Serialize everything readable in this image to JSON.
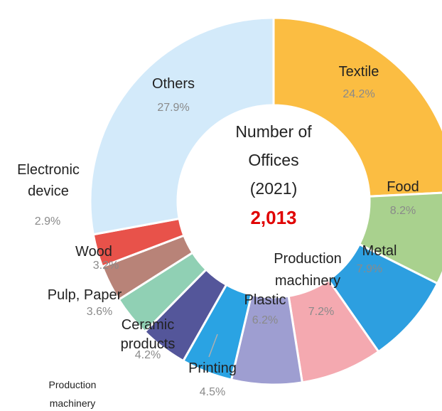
{
  "chart_data": {
    "type": "pie",
    "style": "donut",
    "center": {
      "lines": [
        "Number of",
        "Offices",
        "(2021)"
      ],
      "value": "2,013",
      "value_color": "#e00000"
    },
    "slices": [
      {
        "label": "Textile",
        "label_lines": [
          "Textile"
        ],
        "percent_text": "24.2%",
        "value": 24.2,
        "color": "#fbbd42"
      },
      {
        "label": "Food",
        "label_lines": [
          "Food"
        ],
        "percent_text": "8.2%",
        "value": 8.2,
        "color": "#a9d18e"
      },
      {
        "label": "Metal",
        "label_lines": [
          "Metal"
        ],
        "percent_text": "7.9%",
        "value": 7.9,
        "color": "#2d9fe0"
      },
      {
        "label": "Production machinery",
        "label_lines": [
          "Production",
          "machinery"
        ],
        "percent_text": "7.2%",
        "value": 7.2,
        "color": "#f4a9b0"
      },
      {
        "label": "Plastic",
        "label_lines": [
          "Plastic"
        ],
        "percent_text": "6.2%",
        "value": 6.2,
        "color": "#9e9ed1"
      },
      {
        "label": "Printing",
        "label_lines": [
          "Printing"
        ],
        "percent_text": "4.5%",
        "value": 4.5,
        "color": "#2aa3e3"
      },
      {
        "label": "Ceramic products",
        "label_lines": [
          "Ceramic",
          "products"
        ],
        "percent_text": "4.2%",
        "value": 4.2,
        "color": "#54569a"
      },
      {
        "label": "Pulp, Paper",
        "label_lines": [
          "Pulp, Paper"
        ],
        "percent_text": "3.6%",
        "value": 3.6,
        "color": "#90d0b4"
      },
      {
        "label": "Wood",
        "label_lines": [
          "Wood"
        ],
        "percent_text": "3.2%",
        "value": 3.2,
        "color": "#b88378"
      },
      {
        "label": "Electronic device",
        "label_lines": [
          "Electronic",
          "device"
        ],
        "percent_text": "2.9%",
        "value": 2.9,
        "color": "#e8524a"
      },
      {
        "label": "Others",
        "label_lines": [
          "Others"
        ],
        "percent_text": "27.9%",
        "value": 27.9,
        "color": "#d3eafa"
      }
    ],
    "footnote_lines": [
      "Production",
      "machinery"
    ]
  }
}
